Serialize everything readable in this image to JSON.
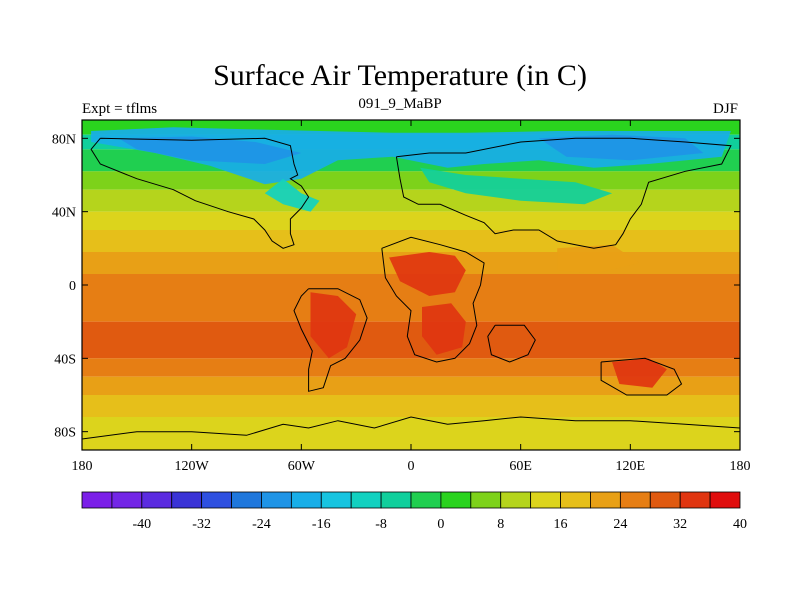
{
  "header": {
    "title": "Surface Air Temperature (in C)",
    "subtitle": "091_9_MaBP",
    "left_label": "Expt = tflms",
    "right_label": "DJF"
  },
  "axes": {
    "x_ticks": [
      {
        "lon": -180,
        "label": "180"
      },
      {
        "lon": -120,
        "label": "120W"
      },
      {
        "lon": -60,
        "label": "60W"
      },
      {
        "lon": 0,
        "label": "0"
      },
      {
        "lon": 60,
        "label": "60E"
      },
      {
        "lon": 120,
        "label": "120E"
      },
      {
        "lon": 180,
        "label": "180"
      }
    ],
    "y_ticks": [
      {
        "lat": 80,
        "label": "80N"
      },
      {
        "lat": 40,
        "label": "40N"
      },
      {
        "lat": 0,
        "label": "0"
      },
      {
        "lat": -40,
        "label": "40S"
      },
      {
        "lat": -80,
        "label": "80S"
      }
    ],
    "lon_range": [
      -180,
      180
    ],
    "lat_range": [
      -90,
      90
    ]
  },
  "colorbar": {
    "colors": [
      "#7b1fe8",
      "#7326e6",
      "#5b2be0",
      "#3a33d6",
      "#2e50e0",
      "#1f77dc",
      "#1f94e6",
      "#18aee8",
      "#17c4e0",
      "#12d1c0",
      "#10cf9c",
      "#20cf50",
      "#2ad31e",
      "#7dd21a",
      "#b5d41c",
      "#dcd41c",
      "#e6bf1a",
      "#e8a016",
      "#e67e14",
      "#e05a10",
      "#e03510",
      "#e00d0d"
    ],
    "labels": [
      {
        "boundary": 2,
        "text": "-40"
      },
      {
        "boundary": 4,
        "text": "-32"
      },
      {
        "boundary": 6,
        "text": "-24"
      },
      {
        "boundary": 8,
        "text": "-16"
      },
      {
        "boundary": 10,
        "text": "-8"
      },
      {
        "boundary": 12,
        "text": "0"
      },
      {
        "boundary": 14,
        "text": "8"
      },
      {
        "boundary": 16,
        "text": "16"
      },
      {
        "boundary": 18,
        "text": "24"
      },
      {
        "boundary": 20,
        "text": "32"
      },
      {
        "boundary": 22,
        "text": "40"
      }
    ]
  },
  "field_bands": [
    {
      "lat_from": 90,
      "lat_to": 82,
      "color": "#2ad31e"
    },
    {
      "lat_from": 82,
      "lat_to": 74,
      "color": "#10cf9c"
    },
    {
      "lat_from": 74,
      "lat_to": 62,
      "color": "#20cf50"
    },
    {
      "lat_from": 62,
      "lat_to": 52,
      "color": "#7dd21a"
    },
    {
      "lat_from": 52,
      "lat_to": 40,
      "color": "#b5d41c"
    },
    {
      "lat_from": 40,
      "lat_to": 30,
      "color": "#dcd41c"
    },
    {
      "lat_from": 30,
      "lat_to": 18,
      "color": "#e6bf1a"
    },
    {
      "lat_from": 18,
      "lat_to": 6,
      "color": "#e8a016"
    },
    {
      "lat_from": 6,
      "lat_to": -20,
      "color": "#e67e14"
    },
    {
      "lat_from": -20,
      "lat_to": -40,
      "color": "#e05a10"
    },
    {
      "lat_from": -40,
      "lat_to": -50,
      "color": "#e67e14"
    },
    {
      "lat_from": -50,
      "lat_to": -60,
      "color": "#e8a016"
    },
    {
      "lat_from": -60,
      "lat_to": -72,
      "color": "#e6bf1a"
    },
    {
      "lat_from": -72,
      "lat_to": -90,
      "color": "#dcd41c"
    }
  ],
  "regions": [
    {
      "name": "north-polar-cold",
      "color": "#18aee8",
      "points": [
        [
          -175,
          84
        ],
        [
          -130,
          86
        ],
        [
          -90,
          85
        ],
        [
          -50,
          84
        ],
        [
          -10,
          83
        ],
        [
          30,
          83
        ],
        [
          80,
          84
        ],
        [
          130,
          84
        ],
        [
          175,
          84
        ],
        [
          170,
          70
        ],
        [
          130,
          66
        ],
        [
          100,
          64
        ],
        [
          70,
          68
        ],
        [
          40,
          66
        ],
        [
          20,
          64
        ],
        [
          -10,
          70
        ],
        [
          -40,
          68
        ],
        [
          -60,
          58
        ],
        [
          -80,
          55
        ],
        [
          -110,
          65
        ],
        [
          -140,
          72
        ],
        [
          -175,
          78
        ]
      ]
    },
    {
      "name": "north-polar-core",
      "color": "#1f94e6",
      "points": [
        [
          -160,
          80
        ],
        [
          -120,
          81
        ],
        [
          -85,
          78
        ],
        [
          -60,
          72
        ],
        [
          -80,
          66
        ],
        [
          -120,
          68
        ],
        [
          -150,
          74
        ]
      ]
    },
    {
      "name": "arctic-cyan-east",
      "color": "#1f94e6",
      "points": [
        [
          70,
          80
        ],
        [
          110,
          82
        ],
        [
          150,
          80
        ],
        [
          160,
          72
        ],
        [
          120,
          68
        ],
        [
          85,
          70
        ]
      ]
    },
    {
      "name": "north-america-cool",
      "color": "#12d1c0",
      "points": [
        [
          -70,
          58
        ],
        [
          -60,
          50
        ],
        [
          -50,
          46
        ],
        [
          -55,
          40
        ],
        [
          -70,
          44
        ],
        [
          -80,
          50
        ]
      ]
    },
    {
      "name": "eurasia-cool",
      "color": "#10cf9c",
      "points": [
        [
          5,
          64
        ],
        [
          30,
          60
        ],
        [
          60,
          58
        ],
        [
          90,
          56
        ],
        [
          110,
          50
        ],
        [
          95,
          44
        ],
        [
          60,
          46
        ],
        [
          30,
          50
        ],
        [
          10,
          56
        ]
      ]
    },
    {
      "name": "africa-hot-north",
      "color": "#e03510",
      "points": [
        [
          -12,
          15
        ],
        [
          10,
          18
        ],
        [
          24,
          16
        ],
        [
          30,
          8
        ],
        [
          24,
          -4
        ],
        [
          10,
          -6
        ],
        [
          -6,
          2
        ]
      ]
    },
    {
      "name": "africa-hot-south",
      "color": "#e03510",
      "points": [
        [
          6,
          -12
        ],
        [
          22,
          -10
        ],
        [
          30,
          -20
        ],
        [
          28,
          -34
        ],
        [
          14,
          -38
        ],
        [
          6,
          -28
        ]
      ]
    },
    {
      "name": "south-america-hot",
      "color": "#e03510",
      "points": [
        [
          -55,
          -4
        ],
        [
          -40,
          -6
        ],
        [
          -30,
          -16
        ],
        [
          -35,
          -34
        ],
        [
          -45,
          -40
        ],
        [
          -55,
          -28
        ]
      ]
    },
    {
      "name": "india-hot",
      "color": "#e05a10",
      "points": [
        [
          48,
          -26
        ],
        [
          62,
          -24
        ],
        [
          66,
          -34
        ],
        [
          56,
          -40
        ],
        [
          46,
          -36
        ]
      ]
    },
    {
      "name": "australia-hot",
      "color": "#e03510",
      "points": [
        [
          110,
          -42
        ],
        [
          130,
          -40
        ],
        [
          140,
          -46
        ],
        [
          132,
          -56
        ],
        [
          114,
          -54
        ]
      ]
    },
    {
      "name": "asia-warm",
      "color": "#e8a016",
      "points": [
        [
          80,
          20
        ],
        [
          110,
          22
        ],
        [
          125,
          12
        ],
        [
          100,
          6
        ],
        [
          80,
          8
        ]
      ]
    }
  ],
  "coastlines": [
    {
      "name": "north-america-coast",
      "points": [
        [
          -170,
          80
        ],
        [
          -120,
          79
        ],
        [
          -80,
          80
        ],
        [
          -66,
          76
        ],
        [
          -64,
          66
        ],
        [
          -62,
          60
        ],
        [
          -66,
          58
        ],
        [
          -60,
          54
        ],
        [
          -56,
          48
        ],
        [
          -60,
          42
        ],
        [
          -66,
          36
        ],
        [
          -66,
          28
        ],
        [
          -64,
          22
        ],
        [
          -70,
          20
        ],
        [
          -76,
          24
        ],
        [
          -80,
          30
        ],
        [
          -86,
          36
        ],
        [
          -100,
          40
        ],
        [
          -118,
          46
        ],
        [
          -130,
          52
        ],
        [
          -150,
          58
        ],
        [
          -170,
          66
        ],
        [
          -175,
          74
        ],
        [
          -170,
          80
        ]
      ]
    },
    {
      "name": "south-america-coast",
      "points": [
        [
          -56,
          -2
        ],
        [
          -40,
          -2
        ],
        [
          -28,
          -8
        ],
        [
          -24,
          -18
        ],
        [
          -28,
          -30
        ],
        [
          -36,
          -40
        ],
        [
          -44,
          -44
        ],
        [
          -48,
          -56
        ],
        [
          -56,
          -58
        ],
        [
          -56,
          -46
        ],
        [
          -54,
          -36
        ],
        [
          -60,
          -24
        ],
        [
          -64,
          -14
        ],
        [
          -60,
          -6
        ],
        [
          -56,
          -2
        ]
      ]
    },
    {
      "name": "africa-coast",
      "points": [
        [
          -16,
          20
        ],
        [
          0,
          26
        ],
        [
          16,
          22
        ],
        [
          30,
          18
        ],
        [
          40,
          12
        ],
        [
          38,
          0
        ],
        [
          34,
          -10
        ],
        [
          36,
          -22
        ],
        [
          32,
          -32
        ],
        [
          24,
          -40
        ],
        [
          14,
          -42
        ],
        [
          2,
          -38
        ],
        [
          -2,
          -28
        ],
        [
          0,
          -14
        ],
        [
          -8,
          -6
        ],
        [
          -14,
          4
        ],
        [
          -16,
          20
        ]
      ]
    },
    {
      "name": "eurasia-coast",
      "points": [
        [
          -8,
          70
        ],
        [
          10,
          72
        ],
        [
          30,
          72
        ],
        [
          60,
          78
        ],
        [
          90,
          80
        ],
        [
          120,
          80
        ],
        [
          150,
          78
        ],
        [
          175,
          76
        ],
        [
          170,
          66
        ],
        [
          150,
          62
        ],
        [
          130,
          56
        ],
        [
          126,
          44
        ],
        [
          120,
          36
        ],
        [
          116,
          28
        ],
        [
          112,
          22
        ],
        [
          100,
          20
        ],
        [
          90,
          22
        ],
        [
          80,
          24
        ],
        [
          70,
          30
        ],
        [
          56,
          30
        ],
        [
          46,
          28
        ],
        [
          40,
          34
        ],
        [
          30,
          38
        ],
        [
          16,
          44
        ],
        [
          4,
          44
        ],
        [
          -4,
          48
        ],
        [
          -6,
          58
        ],
        [
          -8,
          70
        ]
      ]
    },
    {
      "name": "india-block",
      "points": [
        [
          46,
          -22
        ],
        [
          62,
          -22
        ],
        [
          68,
          -30
        ],
        [
          64,
          -38
        ],
        [
          54,
          -42
        ],
        [
          44,
          -38
        ],
        [
          42,
          -28
        ],
        [
          46,
          -22
        ]
      ]
    },
    {
      "name": "australia-coast",
      "points": [
        [
          104,
          -42
        ],
        [
          128,
          -40
        ],
        [
          144,
          -46
        ],
        [
          148,
          -54
        ],
        [
          140,
          -60
        ],
        [
          118,
          -60
        ],
        [
          104,
          -52
        ],
        [
          104,
          -42
        ]
      ]
    },
    {
      "name": "antarctica-coast",
      "points": [
        [
          -180,
          -84
        ],
        [
          -150,
          -80
        ],
        [
          -120,
          -80
        ],
        [
          -90,
          -82
        ],
        [
          -70,
          -76
        ],
        [
          -56,
          -78
        ],
        [
          -40,
          -74
        ],
        [
          -20,
          -78
        ],
        [
          0,
          -72
        ],
        [
          20,
          -76
        ],
        [
          40,
          -74
        ],
        [
          60,
          -72
        ],
        [
          90,
          -74
        ],
        [
          120,
          -74
        ],
        [
          150,
          -76
        ],
        [
          180,
          -78
        ]
      ]
    }
  ]
}
